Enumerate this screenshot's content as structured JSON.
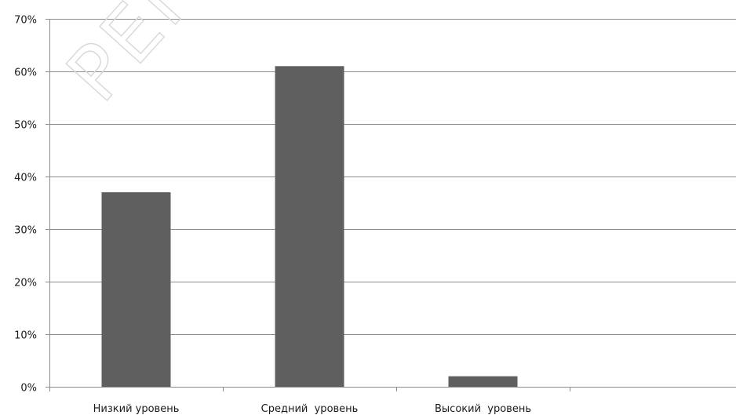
{
  "chart_data": {
    "type": "bar",
    "categories": [
      "Низкий уровень",
      "Средний  уровень",
      "Высокий  уровень",
      ""
    ],
    "values": [
      37,
      61,
      2,
      null
    ],
    "y_tick_labels": [
      "0%",
      "10%",
      "20%",
      "30%",
      "40%",
      "50%",
      "60%",
      "70%"
    ],
    "ylim": [
      0,
      70
    ],
    "y_unit": "%",
    "grid": true,
    "legend": "none",
    "bar_color": "#5f5f5f",
    "grid_color": "#8c8c8c",
    "watermark_text": "РЕП"
  }
}
